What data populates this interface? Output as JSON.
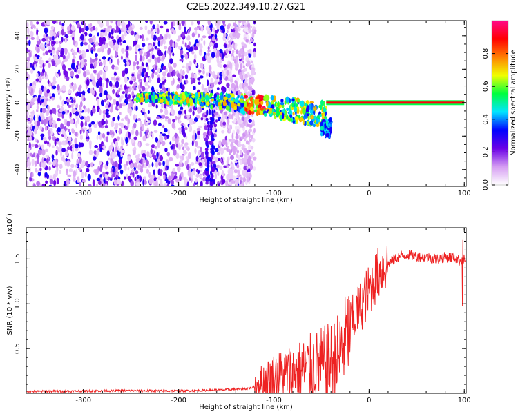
{
  "title": "C2E5.2022.349.10.27.G21",
  "chart_data": [
    {
      "type": "heatmap",
      "xlabel": "Height of straight line (km)",
      "ylabel": "Frequency (Hz)",
      "xlim": [
        -360,
        102
      ],
      "ylim": [
        -50,
        49
      ],
      "xticks": [
        "-300",
        "-200",
        "-100",
        "0",
        "100"
      ],
      "yticks": [
        "-40",
        "-20",
        "0",
        "20",
        "40"
      ],
      "colorbar": {
        "label": "Normalized spectral amplitude",
        "range": [
          0,
          1
        ],
        "ticks": [
          "0.0",
          "0.2",
          "0.4",
          "0.6",
          "0.8"
        ],
        "colors": [
          "#ffffff",
          "#d59cf2",
          "#6a00e6",
          "#0000ff",
          "#00e5ff",
          "#00ff40",
          "#f0ff00",
          "#ff8000",
          "#ff0000",
          "#ff0a8a"
        ]
      },
      "features": {
        "noise_region_x": [
          -360,
          -120
        ],
        "carrier_line": {
          "x": [
            -45,
            100
          ],
          "frequency": 0,
          "amplitude": 0.9
        },
        "drift_band": {
          "x": [
            -245,
            -45
          ],
          "frequency_start": 3,
          "frequency_end": -8
        },
        "vertical_streaks_x": [
          -165,
          -170
        ]
      }
    },
    {
      "type": "line",
      "color": "#ee2222",
      "xlabel": "Height of straight line (km)",
      "ylabel": "SNR (10 * v/v)",
      "yscale_label": "(x10",
      "yscale_exp": "4",
      "xlim": [
        -360,
        102
      ],
      "ylim": [
        0,
        1.85
      ],
      "xticks": [
        "-300",
        "-200",
        "-100",
        "0",
        "100"
      ],
      "yticks": [
        "0.5",
        "1.0",
        "1.5"
      ],
      "x": [
        -360,
        -300,
        -250,
        -200,
        -150,
        -130,
        -120,
        -110,
        -100,
        -90,
        -80,
        -70,
        -60,
        -50,
        -40,
        -30,
        -25,
        -20,
        -10,
        0,
        10,
        20,
        30,
        40,
        50,
        60,
        70,
        80,
        90,
        95,
        98,
        100,
        101
      ],
      "values": [
        0.02,
        0.025,
        0.03,
        0.025,
        0.04,
        0.05,
        0.07,
        0.14,
        0.2,
        0.22,
        0.24,
        0.26,
        0.3,
        0.32,
        0.34,
        0.45,
        0.6,
        0.75,
        0.95,
        1.15,
        1.35,
        1.45,
        1.52,
        1.55,
        1.53,
        1.52,
        1.5,
        1.52,
        1.52,
        1.48,
        1.5,
        1.55,
        1.45
      ]
    }
  ]
}
